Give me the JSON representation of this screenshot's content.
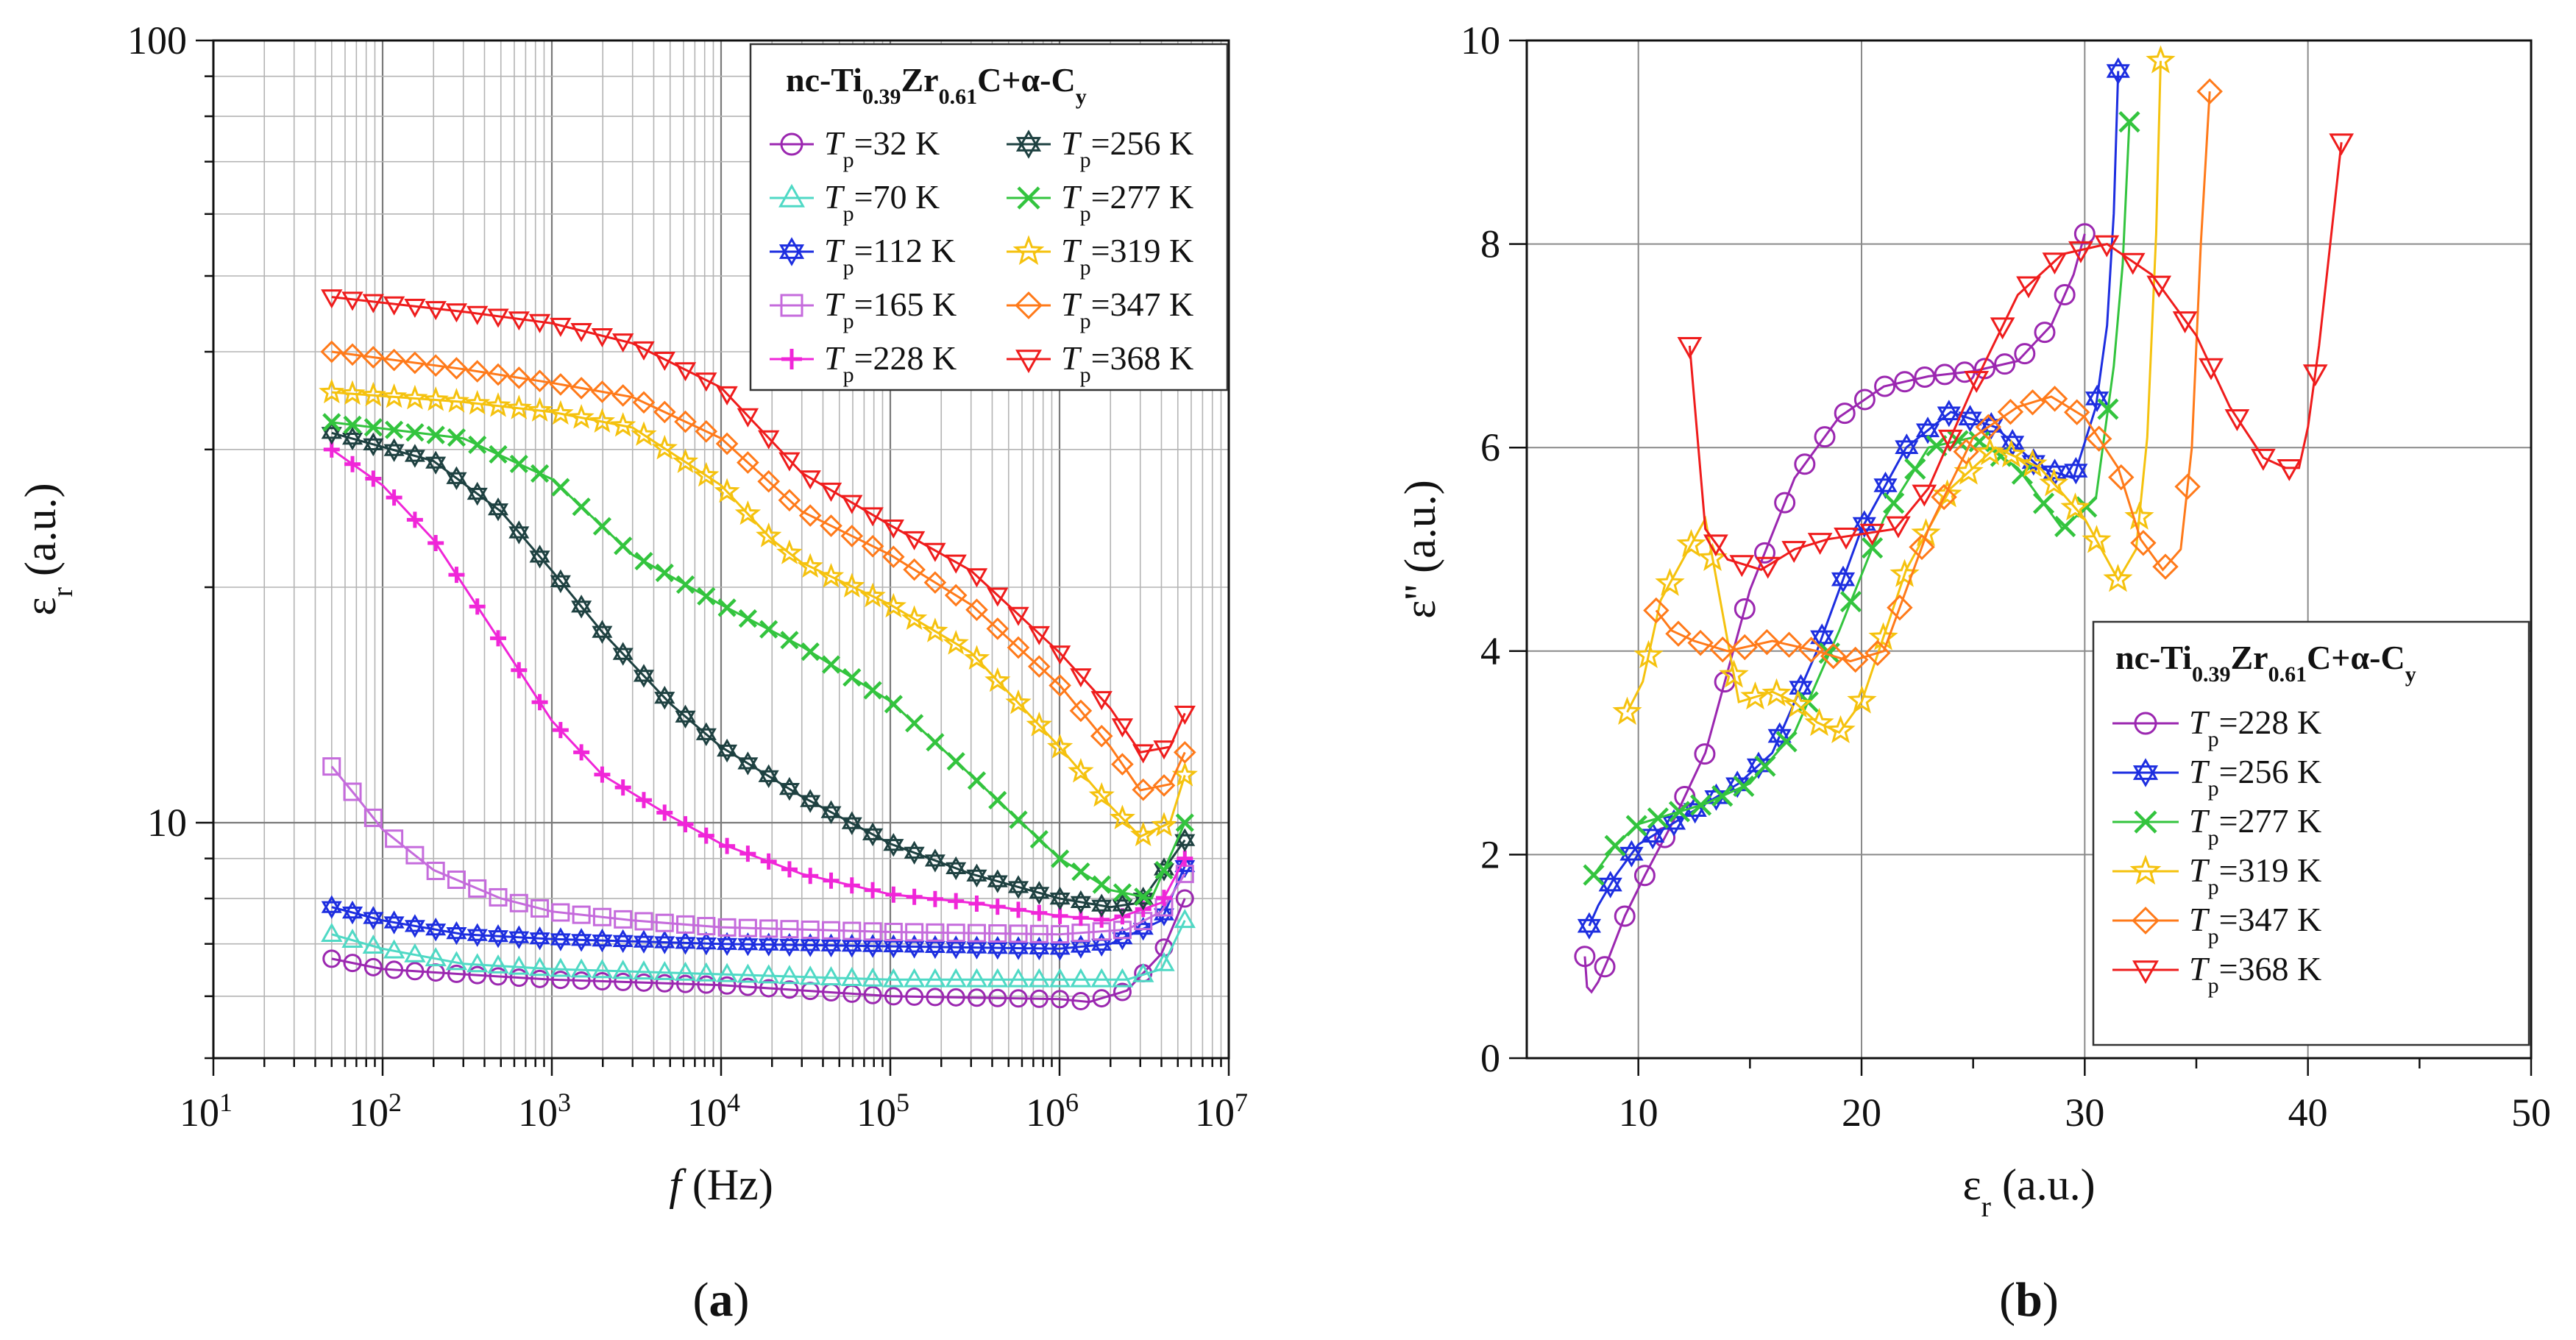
{
  "chart_data": [
    {
      "id": "a",
      "panel_label": "a",
      "type": "line",
      "x_scale": "log",
      "y_scale": "log",
      "xlim": [
        10,
        10000000
      ],
      "ylim": [
        5,
        100
      ],
      "xlabel_symbol": "f",
      "xlabel_unit": "(Hz)",
      "ylabel_symbol": "ε",
      "ylabel_sub": "r",
      "ylabel_unit": "(a.u.)",
      "x_ticks": [
        {
          "value": 10,
          "mantissa": "10",
          "exp": "1"
        },
        {
          "value": 100,
          "mantissa": "10",
          "exp": "2"
        },
        {
          "value": 1000,
          "mantissa": "10",
          "exp": "3"
        },
        {
          "value": 10000,
          "mantissa": "10",
          "exp": "4"
        },
        {
          "value": 100000,
          "mantissa": "10",
          "exp": "5"
        },
        {
          "value": 1000000,
          "mantissa": "10",
          "exp": "6"
        },
        {
          "value": 10000000,
          "mantissa": "10",
          "exp": "7"
        }
      ],
      "y_ticks": [
        {
          "value": 10,
          "label": "10"
        },
        {
          "value": 100,
          "label": "100"
        }
      ],
      "legend": {
        "title_parts": [
          "nc-Ti",
          "0.39",
          "Zr",
          "0.61",
          "C+α-C",
          "y"
        ],
        "placement": "top-right",
        "columns": 2
      },
      "series": [
        {
          "name": "Tp=32 K",
          "temp": "32",
          "color": "#9b27b0",
          "marker": "circle",
          "x": [
            50,
            100,
            300,
            1000,
            10000,
            100000,
            1000000,
            1500000,
            2500000,
            4000000,
            5500000
          ],
          "y": [
            6.7,
            6.5,
            6.4,
            6.3,
            6.2,
            6.0,
            5.95,
            5.9,
            6.1,
            6.8,
            8.0
          ]
        },
        {
          "name": "Tp=70 K",
          "temp": "70",
          "color": "#4fd9c5",
          "marker": "triangle-up",
          "x": [
            50,
            100,
            300,
            1000,
            10000,
            100000,
            1000000,
            2500000,
            4000000,
            5500000
          ],
          "y": [
            7.2,
            6.9,
            6.6,
            6.5,
            6.4,
            6.3,
            6.3,
            6.3,
            6.5,
            7.5
          ]
        },
        {
          "name": "Tp=112 K",
          "temp": "112",
          "color": "#1d2ee0",
          "marker": "star6",
          "x": [
            50,
            100,
            300,
            1000,
            10000,
            100000,
            1000000,
            2000000,
            4000000,
            5500000
          ],
          "y": [
            7.8,
            7.5,
            7.2,
            7.1,
            7.0,
            6.95,
            6.9,
            7.0,
            7.5,
            8.8
          ]
        },
        {
          "name": "Tp=165 K",
          "temp": "165",
          "color": "#c56bdc",
          "marker": "square",
          "x": [
            50,
            70,
            100,
            200,
            500,
            1000,
            3000,
            10000,
            100000,
            1000000,
            2500000,
            4000000,
            5500000
          ],
          "y": [
            11.8,
            10.8,
            9.8,
            8.7,
            8.0,
            7.7,
            7.5,
            7.35,
            7.25,
            7.2,
            7.3,
            7.7,
            8.6
          ]
        },
        {
          "name": "Tp=228 K",
          "temp": "228",
          "color": "#f026d8",
          "marker": "plus",
          "x": [
            50,
            100,
            200,
            500,
            1000,
            2000,
            5000,
            10000,
            30000,
            100000,
            300000,
            1000000,
            2000000,
            4000000,
            5500000
          ],
          "y": [
            30,
            27,
            23,
            17,
            13.5,
            11.5,
            10.2,
            9.4,
            8.6,
            8.1,
            7.9,
            7.6,
            7.5,
            7.9,
            9.0
          ]
        },
        {
          "name": "Tp=256 K",
          "temp": "256",
          "color": "#1e4141",
          "marker": "star6",
          "x": [
            50,
            200,
            500,
            1000,
            2000,
            5000,
            10000,
            30000,
            100000,
            300000,
            1000000,
            2000000,
            3000000,
            5500000
          ],
          "y": [
            31.5,
            29,
            25,
            21,
            17.5,
            14.2,
            12.5,
            10.8,
            9.4,
            8.6,
            8.0,
            7.8,
            7.9,
            9.5
          ]
        },
        {
          "name": "Tp=277 K",
          "temp": "277",
          "color": "#33c43e",
          "marker": "cross",
          "x": [
            50,
            300,
            1000,
            3000,
            10000,
            30000,
            100000,
            300000,
            1000000,
            2000000,
            3500000,
            5500000
          ],
          "y": [
            32.5,
            31,
            27.5,
            22,
            19,
            16.8,
            14.3,
            11.5,
            9.0,
            8.2,
            8.0,
            10.0
          ]
        },
        {
          "name": "Tp=319 K",
          "temp": "319",
          "color": "#f5c20e",
          "marker": "star5",
          "x": [
            50,
            300,
            1000,
            3000,
            10000,
            20000,
            30000,
            100000,
            300000,
            1000000,
            2000000,
            3000000,
            4500000,
            5500000
          ],
          "y": [
            35.5,
            34.5,
            33.5,
            32,
            27,
            23,
            21.5,
            19,
            16.5,
            12.5,
            10.5,
            9.6,
            10.0,
            11.5
          ]
        },
        {
          "name": "Tp=347 K",
          "temp": "347",
          "color": "#ff7a1a",
          "marker": "diamond",
          "x": [
            50,
            300,
            1000,
            3000,
            10000,
            30000,
            100000,
            300000,
            1000000,
            2000000,
            3000000,
            4500000,
            5500000
          ],
          "y": [
            40,
            38,
            36.5,
            35,
            31,
            25,
            22,
            19,
            15,
            12.5,
            11,
            11.2,
            12.3
          ]
        },
        {
          "name": "Tp=368 K",
          "temp": "368",
          "color": "#ef1c1c",
          "marker": "triangle-down",
          "x": [
            50,
            300,
            1000,
            3000,
            10000,
            30000,
            100000,
            300000,
            1000000,
            2000000,
            3000000,
            4500000,
            5500000
          ],
          "y": [
            47,
            45,
            43.5,
            41,
            36,
            28,
            24,
            21,
            16.5,
            14,
            12.3,
            12.5,
            13.8
          ]
        }
      ]
    },
    {
      "id": "b",
      "panel_label": "b",
      "type": "line",
      "x_scale": "linear",
      "y_scale": "linear",
      "xlim": [
        5,
        50
      ],
      "ylim": [
        0,
        10
      ],
      "xlabel_symbol": "ε",
      "xlabel_sub": "r",
      "xlabel_unit": "(a.u.)",
      "ylabel_symbol": "ε''",
      "ylabel_unit": "(a.u.)",
      "x_ticks": [
        10,
        20,
        30,
        40,
        50
      ],
      "y_ticks": [
        0,
        2,
        4,
        6,
        8,
        10
      ],
      "legend": {
        "title_parts": [
          "nc-Ti",
          "0.39",
          "Zr",
          "0.61",
          "C+α-C",
          "y"
        ],
        "placement": "bottom-right",
        "columns": 1
      },
      "series": [
        {
          "name": "Tp=228 K",
          "temp": "228",
          "color": "#9b27b0",
          "marker": "circle",
          "x": [
            7.6,
            7.7,
            7.9,
            8.2,
            8.7,
            9.4,
            10.3,
            11.5,
            13,
            15,
            17,
            19,
            21,
            23,
            25,
            27,
            28.5,
            29.5,
            30
          ],
          "y": [
            1.0,
            0.7,
            0.65,
            0.75,
            1.0,
            1.4,
            1.8,
            2.3,
            3.0,
            4.6,
            5.7,
            6.3,
            6.6,
            6.7,
            6.75,
            6.85,
            7.2,
            7.7,
            8.1
          ]
        },
        {
          "name": "Tp=256 K",
          "temp": "256",
          "color": "#1d2ee0",
          "marker": "star6",
          "x": [
            7.8,
            8.2,
            9,
            10,
            11.5,
            13,
            14.5,
            16,
            18,
            20,
            22,
            24,
            26,
            28,
            29.5,
            30.5,
            31,
            31.3,
            31.5
          ],
          "y": [
            1.3,
            1.5,
            1.8,
            2.1,
            2.3,
            2.5,
            2.7,
            3.0,
            4.0,
            5.2,
            6.0,
            6.35,
            6.2,
            5.8,
            5.7,
            6.4,
            7.2,
            8.3,
            9.7
          ]
        },
        {
          "name": "Tp=277 K",
          "temp": "277",
          "color": "#33c43e",
          "marker": "cross",
          "x": [
            8,
            9,
            10,
            11.5,
            13,
            15,
            17,
            19,
            21,
            23,
            25,
            27,
            29,
            30.5,
            31.3,
            31.7,
            32
          ],
          "y": [
            1.8,
            2.1,
            2.3,
            2.4,
            2.5,
            2.7,
            3.2,
            4.2,
            5.3,
            6.0,
            6.1,
            5.8,
            5.2,
            5.5,
            6.8,
            7.8,
            9.2
          ]
        },
        {
          "name": "Tp=319 K",
          "temp": "319",
          "color": "#f5c20e",
          "marker": "star5",
          "x": [
            9.5,
            10.2,
            11,
            12,
            13,
            14.5,
            16,
            17,
            18,
            19,
            20,
            22,
            24,
            26,
            28,
            30,
            31.5,
            32.3,
            32.8,
            33.2,
            33.4
          ],
          "y": [
            3.4,
            3.7,
            4.5,
            4.9,
            5.3,
            3.5,
            3.6,
            3.5,
            3.3,
            3.2,
            3.5,
            4.8,
            5.6,
            6.0,
            5.8,
            5.3,
            4.7,
            5.0,
            6.1,
            8.1,
            9.8
          ]
        },
        {
          "name": "Tp=347 K",
          "temp": "347",
          "color": "#ff7a1a",
          "marker": "diamond",
          "x": [
            10.8,
            11.5,
            12.5,
            14,
            16,
            18,
            19.5,
            21,
            23,
            25,
            27,
            28.5,
            30,
            31.5,
            32.5,
            33.5,
            34.3,
            34.8,
            35.2,
            35.6
          ],
          "y": [
            4.4,
            4.2,
            4.1,
            4.0,
            4.1,
            4.0,
            3.9,
            4.0,
            5.2,
            6.1,
            6.4,
            6.5,
            6.3,
            5.8,
            5.1,
            4.8,
            5.0,
            6.0,
            8.0,
            9.5
          ]
        },
        {
          "name": "Tp=368 K",
          "temp": "368",
          "color": "#ef1c1c",
          "marker": "triangle-down",
          "x": [
            12.3,
            13,
            14,
            15.5,
            17,
            18.5,
            20,
            21.5,
            23,
            25,
            27,
            29,
            31,
            33,
            35,
            36.5,
            38,
            39,
            39.6,
            40,
            40.5,
            41,
            41.5
          ],
          "y": [
            7.0,
            5.2,
            4.9,
            4.8,
            5.0,
            5.1,
            5.15,
            5.2,
            5.6,
            6.6,
            7.5,
            7.9,
            8.0,
            7.7,
            7.1,
            6.4,
            5.9,
            5.8,
            5.8,
            6.2,
            7.0,
            8.0,
            9.0
          ]
        }
      ]
    }
  ]
}
